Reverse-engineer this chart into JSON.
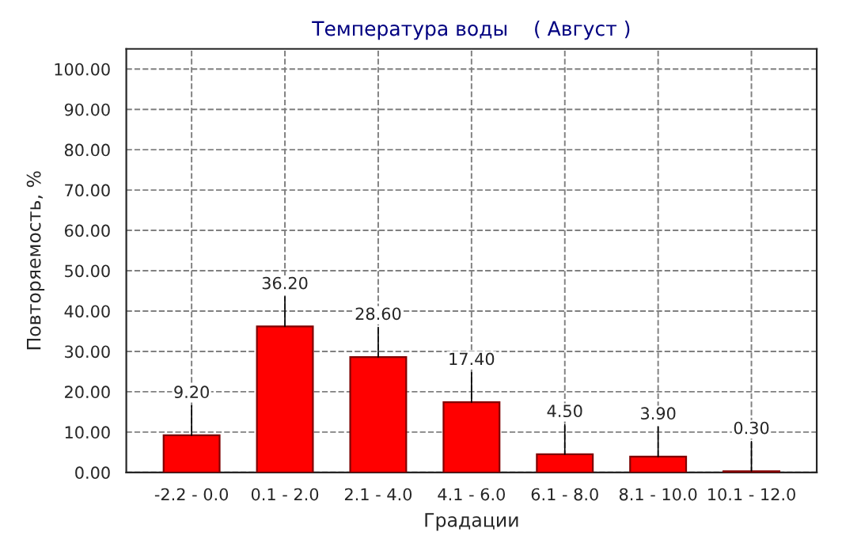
{
  "chart_data": {
    "type": "bar",
    "title": "Температура воды    ( Август )",
    "xlabel": "Градации",
    "ylabel": "Повторяемость, %",
    "categories": [
      "-2.2 - 0.0",
      "0.1 - 2.0",
      "2.1 - 4.0",
      "4.1 - 6.0",
      "6.1 - 8.0",
      "8.1 - 10.0",
      "10.1 - 12.0"
    ],
    "values": [
      9.2,
      36.2,
      28.6,
      17.4,
      4.5,
      3.9,
      0.3
    ],
    "value_labels": [
      "9.20",
      "36.20",
      "28.60",
      "17.40",
      "4.50",
      "3.90",
      "0.30"
    ],
    "color": "#ff0000",
    "ylim": [
      0,
      105
    ],
    "yticks": [
      {
        "value": 0,
        "label": "0.00"
      },
      {
        "value": 10,
        "label": "10.00"
      },
      {
        "value": 20,
        "label": "20.00"
      },
      {
        "value": 30,
        "label": "30.00"
      },
      {
        "value": 40,
        "label": "40.00"
      },
      {
        "value": 50,
        "label": "50.00"
      },
      {
        "value": 60,
        "label": "60.00"
      },
      {
        "value": 70,
        "label": "70.00"
      },
      {
        "value": 80,
        "label": "80.00"
      },
      {
        "value": 90,
        "label": "90.00"
      },
      {
        "value": 100,
        "label": "100.00"
      }
    ],
    "grid": true,
    "line_style": "dashed"
  }
}
